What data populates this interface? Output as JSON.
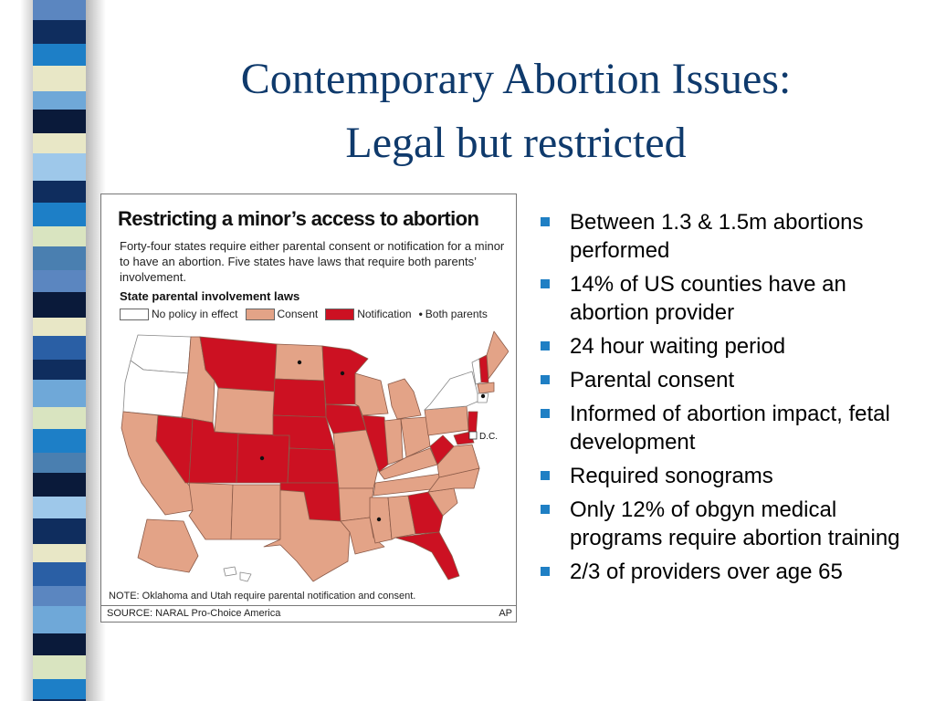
{
  "slide": {
    "title_line1": "Contemporary Abortion Issues:",
    "title_line2": "Legal but restricted",
    "colors": {
      "title": "#0f3a6c",
      "bullet_marker": "#1f7fc4"
    }
  },
  "graphic": {
    "headline": "Restricting a minor’s access to abortion",
    "description": "Forty-four states require either parental consent or notification for a minor to have an abortion. Five states have laws that require both parents’ involvement.",
    "subheading": "State parental involvement laws",
    "legend": {
      "none": "No policy in effect",
      "consent": "Consent",
      "notification": "Notification",
      "both_marker": "•",
      "both": "Both parents"
    },
    "dc_label": "D.C.",
    "note": "NOTE: Oklahoma and Utah require parental notification and consent.",
    "source": "SOURCE: NARAL Pro-Choice America",
    "credit": "AP",
    "colors": {
      "none": "#ffffff",
      "consent": "#e3a387",
      "notification": "#cc1122"
    }
  },
  "bullets": [
    "Between 1.3 & 1.5m abortions performed",
    "14% of US counties have an abortion provider",
    "24 hour waiting period",
    "Parental consent",
    "Informed of abortion impact, fetal development",
    "Required sonograms",
    "Only 12% of obgyn medical programs require abortion training",
    "2/3 of providers over age 65"
  ]
}
